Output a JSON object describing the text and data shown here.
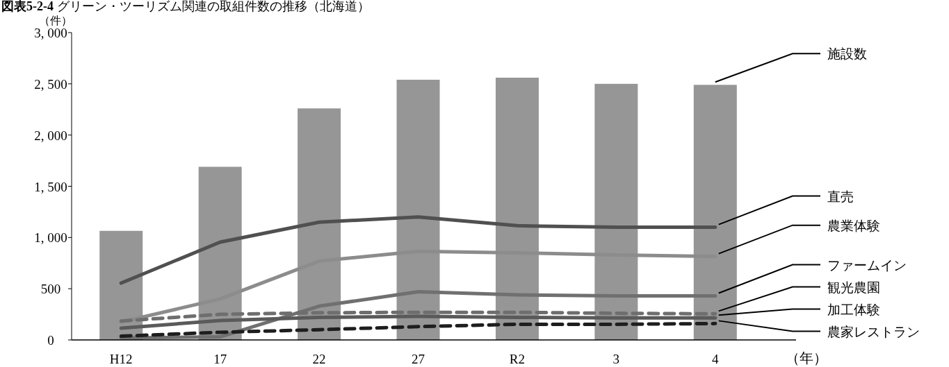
{
  "chart_data": {
    "type": "bar",
    "title": "**図表5-2-4** グリーン・ツーリズム関連の取組件数の推移（北海道）",
    "ylabel": "（件）",
    "xlabel": "（年）",
    "categories": [
      "H12",
      "17",
      "22",
      "27",
      "R2",
      "3",
      "4"
    ],
    "ylim": [
      0,
      3000
    ],
    "yticks": [
      0,
      500,
      {
        "value": 1000,
        "label": "1, 000"
      },
      {
        "value": 1500,
        "label": "1, 500"
      },
      {
        "value": 2000,
        "label": "2, 000"
      },
      {
        "value": 2500,
        "label": "2, 500"
      },
      {
        "value": 3000,
        "label": "3, 000"
      }
    ],
    "legend": "right",
    "series": [
      {
        "name": "施設数",
        "color": "#969696",
        "values": [
          1065,
          1690,
          2260,
          2540,
          2560,
          2500,
          2490
        ]
      },
      {
        "name": "直売",
        "type": "line",
        "color": "#505050",
        "line_style": "solid",
        "values": [
          555,
          955,
          1150,
          1200,
          1115,
          1100,
          1100
        ]
      },
      {
        "name": "農業体験",
        "type": "line",
        "color": "#8c8c8c",
        "line_style": "solid",
        "values": [
          175,
          400,
          770,
          865,
          850,
          830,
          815
        ]
      },
      {
        "name": "ファームイン",
        "type": "line",
        "color": "#707070",
        "line_style": "solid",
        "values": [
          20,
          30,
          330,
          470,
          440,
          430,
          430
        ]
      },
      {
        "name": "観光農園",
        "type": "line",
        "color": "#6e6e6e",
        "line_style": "dashed",
        "values": [
          185,
          250,
          265,
          270,
          270,
          260,
          255
        ]
      },
      {
        "name": "加工体験",
        "type": "line",
        "color": "#5a5a5a",
        "line_style": "solid",
        "values": [
          115,
          190,
          220,
          230,
          220,
          215,
          215
        ]
      },
      {
        "name": "農家レストラン",
        "type": "line",
        "color": "#1e1e1e",
        "line_style": "dashed",
        "values": [
          37,
          75,
          100,
          130,
          153,
          153,
          160
        ]
      }
    ]
  }
}
